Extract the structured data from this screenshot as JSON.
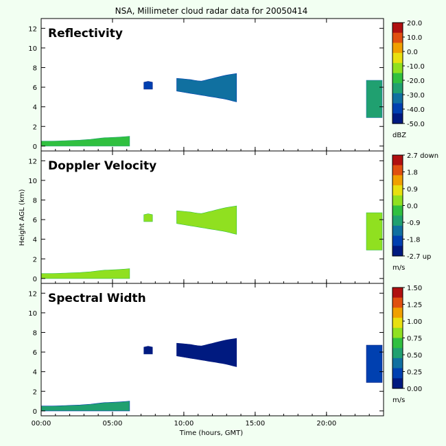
{
  "title": "NSA, Millimeter cloud radar data for 20050414",
  "xlabel": "Time (hours, GMT)",
  "ylabel": "Height AGL (km)",
  "chart_data": [
    {
      "type": "heatmap",
      "panel_title": "Reflectivity",
      "x_ticks": [
        0,
        5,
        10,
        15,
        20
      ],
      "x_tick_labels": [
        "00:00",
        "05:00",
        "10:00",
        "15:00",
        "20:00"
      ],
      "xlim": [
        0,
        24
      ],
      "y_ticks": [
        0,
        2,
        4,
        6,
        8,
        10,
        12
      ],
      "y_tick_labels": [
        "0",
        "2",
        "4",
        "6",
        "8",
        "10",
        "12"
      ],
      "ylim": [
        -0.5,
        13
      ],
      "colorbar": {
        "unit": "dBZ",
        "labels": [
          "20.0",
          "10.0",
          "0.0",
          "-10.0",
          "-20.0",
          "-30.0",
          "-40.0",
          "-50.0"
        ],
        "range": [
          -50,
          20
        ]
      },
      "regions": [
        {
          "t0": 0.0,
          "t1": 6.2,
          "h_bottom": 0.0,
          "h_top": [
            0.5,
            0.5,
            0.55,
            0.6,
            0.7,
            0.85,
            0.9,
            1.0
          ],
          "value": -20
        },
        {
          "t0": 7.2,
          "t1": 7.8,
          "h_bottom": 5.8,
          "h_top": [
            6.5,
            6.6,
            6.5
          ],
          "value": -40
        },
        {
          "t0": 9.5,
          "t1": 13.7,
          "h_bottom": [
            5.6,
            5.4,
            5.2,
            5.0,
            4.8,
            4.5
          ],
          "h_top": [
            6.9,
            6.8,
            6.6,
            6.9,
            7.2,
            7.4
          ],
          "value": -32
        },
        {
          "t0": 22.8,
          "t1": 23.9,
          "h_bottom": 2.9,
          "h_top": 6.7,
          "value": -26
        }
      ]
    },
    {
      "type": "heatmap",
      "panel_title": "Doppler Velocity",
      "x_ticks": [
        0,
        5,
        10,
        15,
        20
      ],
      "x_tick_labels": [
        "00:00",
        "05:00",
        "10:00",
        "15:00",
        "20:00"
      ],
      "xlim": [
        0,
        24
      ],
      "y_ticks": [
        0,
        2,
        4,
        6,
        8,
        10,
        12
      ],
      "y_tick_labels": [
        "0",
        "2",
        "4",
        "6",
        "8",
        "10",
        "12"
      ],
      "ylim": [
        -0.5,
        13
      ],
      "colorbar": {
        "unit": "m/s",
        "labels": [
          "2.7 down",
          "1.8",
          "0.9",
          "0.0",
          "-0.9",
          "-1.8",
          "-2.7 up"
        ],
        "range": [
          -2.7,
          2.7
        ]
      },
      "regions": [
        {
          "t0": 0.0,
          "t1": 6.2,
          "h_bottom": 0.0,
          "h_top": [
            0.5,
            0.5,
            0.55,
            0.6,
            0.7,
            0.85,
            0.9,
            1.0
          ],
          "value": 0.3
        },
        {
          "t0": 7.2,
          "t1": 7.8,
          "h_bottom": 5.8,
          "h_top": [
            6.5,
            6.6,
            6.5
          ],
          "value": 0.2
        },
        {
          "t0": 9.5,
          "t1": 13.7,
          "h_bottom": [
            5.6,
            5.4,
            5.2,
            5.0,
            4.8,
            4.5
          ],
          "h_top": [
            6.9,
            6.8,
            6.6,
            6.9,
            7.2,
            7.4
          ],
          "value": 0.1
        },
        {
          "t0": 22.8,
          "t1": 23.9,
          "h_bottom": 2.9,
          "h_top": 6.7,
          "value": 0.5
        }
      ]
    },
    {
      "type": "heatmap",
      "panel_title": "Spectral Width",
      "x_ticks": [
        0,
        5,
        10,
        15,
        20
      ],
      "x_tick_labels": [
        "00:00",
        "05:00",
        "10:00",
        "15:00",
        "20:00"
      ],
      "xlim": [
        0,
        24
      ],
      "y_ticks": [
        0,
        2,
        4,
        6,
        8,
        10,
        12
      ],
      "y_tick_labels": [
        "0",
        "2",
        "4",
        "6",
        "8",
        "10",
        "12"
      ],
      "ylim": [
        -0.5,
        13
      ],
      "colorbar": {
        "unit": "m/s",
        "labels": [
          "1.50",
          "1.25",
          "1.00",
          "0.75",
          "0.50",
          "0.25",
          "0.00"
        ],
        "range": [
          0,
          1.5
        ]
      },
      "regions": [
        {
          "t0": 0.0,
          "t1": 6.2,
          "h_bottom": 0.0,
          "h_top": [
            0.5,
            0.5,
            0.55,
            0.6,
            0.7,
            0.85,
            0.9,
            1.0
          ],
          "value": 0.45
        },
        {
          "t0": 7.2,
          "t1": 7.8,
          "h_bottom": 5.8,
          "h_top": [
            6.5,
            6.6,
            6.5
          ],
          "value": 0.15
        },
        {
          "t0": 9.5,
          "t1": 13.7,
          "h_bottom": [
            5.6,
            5.4,
            5.2,
            5.0,
            4.8,
            4.5
          ],
          "h_top": [
            6.9,
            6.8,
            6.6,
            6.9,
            7.2,
            7.4
          ],
          "value": 0.12
        },
        {
          "t0": 22.8,
          "t1": 23.9,
          "h_bottom": 2.9,
          "h_top": 6.7,
          "value": 0.18
        }
      ]
    }
  ],
  "colormap": [
    "#001a80",
    "#0040b0",
    "#1070a0",
    "#20a070",
    "#30c040",
    "#90e020",
    "#e8e010",
    "#f0a000",
    "#e05010",
    "#b01010"
  ]
}
